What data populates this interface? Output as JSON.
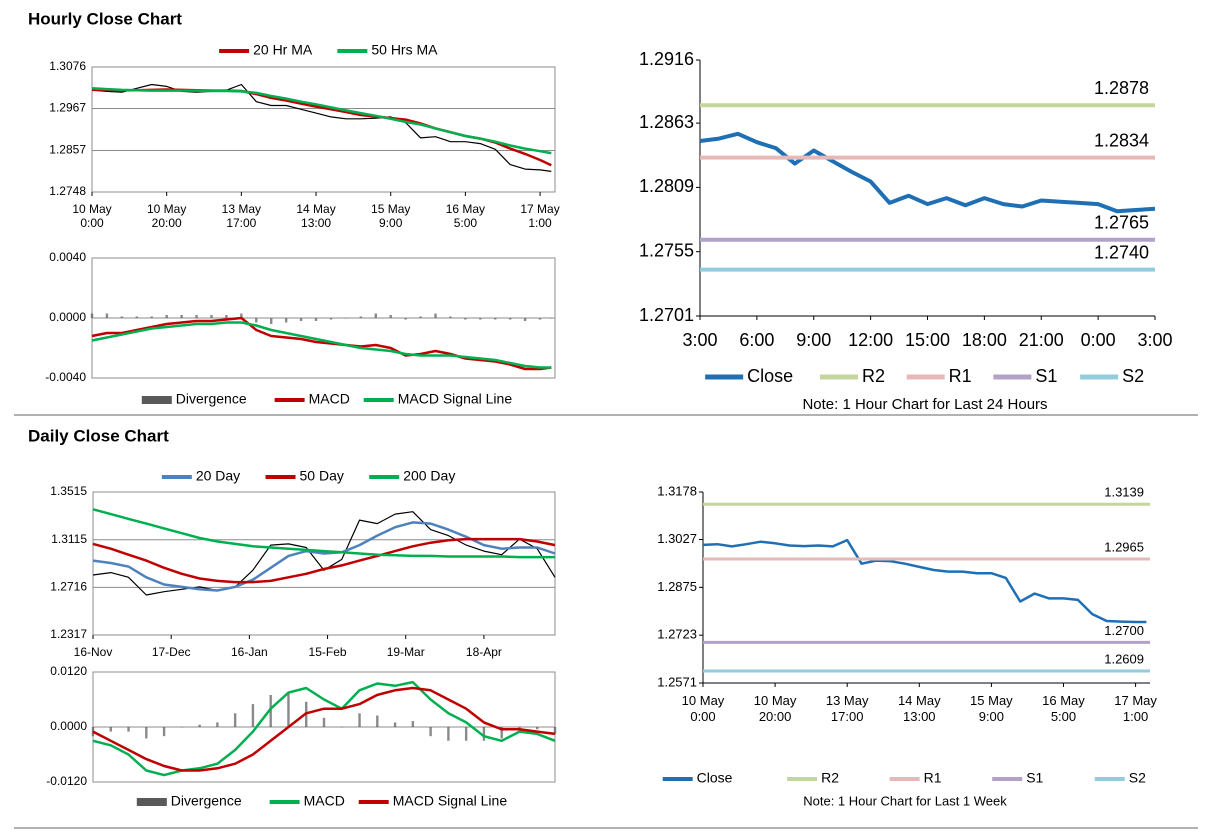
{
  "sections": [
    "Hourly Close Chart",
    "Daily Close Chart"
  ],
  "chart_data": [
    {
      "type": "line",
      "ylim": [
        1.2748,
        1.3076
      ],
      "yticks": [
        1.2748,
        1.2857,
        1.2967,
        1.3076
      ],
      "grid": true,
      "xlim": [
        0,
        124
      ],
      "xticks": [
        {
          "value": 0,
          "label": "10 May\n0:00"
        },
        {
          "value": 20,
          "label": "10 May\n20:00"
        },
        {
          "value": 40,
          "label": "13 May\n17:00"
        },
        {
          "value": 60,
          "label": "14 May\n13:00"
        },
        {
          "value": 80,
          "label": "15 May\n9:00"
        },
        {
          "value": 100,
          "label": "16 May\n5:00"
        },
        {
          "value": 120,
          "label": "17 May\n1:00"
        }
      ],
      "x": [
        0,
        4,
        8,
        12,
        16,
        20,
        24,
        28,
        32,
        36,
        40,
        44,
        48,
        52,
        56,
        60,
        64,
        68,
        72,
        76,
        80,
        84,
        88,
        92,
        96,
        100,
        104,
        108,
        112,
        116,
        120,
        123
      ],
      "series": [
        {
          "color": "#000000",
          "values": [
            1.3015,
            1.3012,
            1.301,
            1.302,
            1.303,
            1.3025,
            1.3012,
            1.301,
            1.3012,
            1.3015,
            1.303,
            1.2985,
            1.2975,
            1.2975,
            1.2965,
            1.2955,
            1.2945,
            1.294,
            1.294,
            1.2942,
            1.2945,
            1.293,
            1.289,
            1.2893,
            1.288,
            1.288,
            1.2875,
            1.286,
            1.282,
            1.2808,
            1.2806,
            1.2802
          ]
        },
        {
          "name": "20 Hr MA",
          "color": "#c00000",
          "values": [
            1.3016,
            1.3016,
            1.3015,
            1.3015,
            1.3016,
            1.3017,
            1.3016,
            1.3015,
            1.3014,
            1.3014,
            1.3013,
            1.3005,
            1.2995,
            1.2988,
            1.298,
            1.2972,
            1.2965,
            1.2958,
            1.295,
            1.2946,
            1.2942,
            1.2938,
            1.2928,
            1.2915,
            1.2905,
            1.2895,
            1.2888,
            1.2878,
            1.2862,
            1.2848,
            1.2832,
            1.2818
          ]
        },
        {
          "name": "50 Hrs MA",
          "color": "#00b050",
          "values": [
            1.302,
            1.3018,
            1.3016,
            1.3015,
            1.3014,
            1.3014,
            1.3014,
            1.3014,
            1.3013,
            1.3013,
            1.3012,
            1.3008,
            1.3,
            1.2993,
            1.2985,
            1.2978,
            1.297,
            1.2962,
            1.2955,
            1.2948,
            1.294,
            1.2932,
            1.2925,
            1.2915,
            1.2905,
            1.2895,
            1.2888,
            1.288,
            1.287,
            1.2862,
            1.2855,
            1.285
          ]
        }
      ]
    },
    {
      "type": "line",
      "ylim": [
        -0.004,
        0.004
      ],
      "yticks": [
        {
          "value": -0.004,
          "label": "-0.0040"
        },
        {
          "value": 0,
          "label": "0.0000"
        },
        {
          "value": 0.004,
          "label": "0.0040"
        }
      ],
      "grid": true,
      "xlim": [
        0,
        124
      ],
      "x": [
        0,
        4,
        8,
        12,
        16,
        20,
        24,
        28,
        32,
        36,
        40,
        44,
        48,
        52,
        56,
        60,
        64,
        68,
        72,
        76,
        80,
        84,
        88,
        92,
        96,
        100,
        104,
        108,
        112,
        116,
        120,
        123
      ],
      "series": [
        {
          "name": "Divergence",
          "type": "bar",
          "color": "#595959",
          "values": [
            0.0003,
            0.0003,
            0.0001,
            0.0001,
            0.0001,
            0.0002,
            0.0002,
            0.0002,
            0.0002,
            0.0002,
            0.0003,
            -0.0003,
            -0.0004,
            -0.0003,
            -0.0002,
            -0.0002,
            -0.0001,
            0,
            0.0001,
            0.0003,
            0.0002,
            -0.0001,
            0.0001,
            0.0003,
            0.0001,
            -0.0001,
            -0.0001,
            -0.0001,
            -0.0001,
            -0.0002,
            -0.0001,
            0
          ]
        },
        {
          "name": "MACD",
          "color": "#c00000",
          "values": [
            -0.0012,
            -0.001,
            -0.001,
            -0.0008,
            -0.0006,
            -0.0004,
            -0.0003,
            -0.0002,
            -0.0002,
            -0.0001,
            0,
            -0.0008,
            -0.0012,
            -0.0013,
            -0.0014,
            -0.0016,
            -0.0017,
            -0.0018,
            -0.0019,
            -0.0018,
            -0.002,
            -0.0025,
            -0.0024,
            -0.0022,
            -0.0024,
            -0.0027,
            -0.0028,
            -0.0029,
            -0.0031,
            -0.0034,
            -0.0034,
            -0.0033
          ]
        },
        {
          "name": "MACD Signal Line",
          "color": "#00b050",
          "values": [
            -0.0015,
            -0.0013,
            -0.0011,
            -0.0009,
            -0.0007,
            -0.0006,
            -0.0005,
            -0.0004,
            -0.0004,
            -0.0003,
            -0.0003,
            -0.0005,
            -0.0008,
            -0.001,
            -0.0012,
            -0.0014,
            -0.0016,
            -0.0018,
            -0.002,
            -0.0021,
            -0.0022,
            -0.0024,
            -0.0025,
            -0.0025,
            -0.0025,
            -0.0026,
            -0.0027,
            -0.0028,
            -0.003,
            -0.0032,
            -0.0033,
            -0.0033
          ]
        }
      ]
    },
    {
      "type": "line",
      "ylim": [
        1.2701,
        1.2916
      ],
      "yticks": [
        1.2701,
        1.2755,
        1.2809,
        1.2863,
        1.2916
      ],
      "grid": false,
      "xlim": [
        0,
        24
      ],
      "xticks": [
        {
          "value": 0,
          "label": "3:00"
        },
        {
          "value": 3,
          "label": "6:00"
        },
        {
          "value": 6,
          "label": "9:00"
        },
        {
          "value": 9,
          "label": "12:00"
        },
        {
          "value": 12,
          "label": "15:00"
        },
        {
          "value": 15,
          "label": "18:00"
        },
        {
          "value": 18,
          "label": "21:00"
        },
        {
          "value": 21,
          "label": "0:00"
        },
        {
          "value": 24,
          "label": "3:00"
        }
      ],
      "x": [
        0,
        1,
        2,
        3,
        4,
        5,
        6,
        7,
        8,
        9,
        10,
        11,
        12,
        13,
        14,
        15,
        16,
        17,
        18,
        19,
        20,
        21,
        22,
        23,
        24
      ],
      "series": [
        {
          "name": "Close",
          "color": "#1f6fb5",
          "values": [
            1.2848,
            1.285,
            1.2854,
            1.2847,
            1.2842,
            1.2829,
            1.284,
            1.2831,
            1.2822,
            1.2814,
            1.2796,
            1.2802,
            1.2795,
            1.28,
            1.2794,
            1.28,
            1.2795,
            1.2793,
            1.2798,
            1.2797,
            1.2796,
            1.2795,
            1.2789,
            1.279,
            1.2791
          ]
        }
      ],
      "levels": [
        {
          "name": "R2",
          "color": "#c3d69b",
          "value": 1.2878,
          "value_label": "1.2878"
        },
        {
          "name": "R1",
          "color": "#e6b9b8",
          "value": 1.2834,
          "value_label": "1.2834"
        },
        {
          "name": "S1",
          "color": "#b3a2c7",
          "value": 1.2765,
          "value_label": "1.2765"
        },
        {
          "name": "S2",
          "color": "#93cddd",
          "value": 1.274,
          "value_label": "1.2740"
        }
      ],
      "note": "Note: 1 Hour Chart for Last 24 Hours"
    },
    {
      "type": "line",
      "ylim": [
        1.2317,
        1.3515
      ],
      "yticks": [
        1.2317,
        1.2716,
        1.3115,
        1.3515
      ],
      "grid": true,
      "xlim": [
        0,
        130
      ],
      "xticks": [
        {
          "value": 0,
          "label": "16-Nov"
        },
        {
          "value": 22,
          "label": "17-Dec"
        },
        {
          "value": 44,
          "label": "16-Jan"
        },
        {
          "value": 66,
          "label": "15-Feb"
        },
        {
          "value": 88,
          "label": "19-Mar"
        },
        {
          "value": 110,
          "label": "18-Apr"
        }
      ],
      "x": [
        0,
        5,
        10,
        15,
        20,
        25,
        30,
        35,
        40,
        45,
        50,
        55,
        60,
        65,
        70,
        75,
        80,
        85,
        90,
        95,
        100,
        105,
        110,
        115,
        120,
        125,
        130
      ],
      "series": [
        {
          "color": "#000000",
          "values": [
            1.282,
            1.284,
            1.28,
            1.2652,
            1.268,
            1.27,
            1.272,
            1.269,
            1.272,
            1.286,
            1.307,
            1.308,
            1.305,
            1.286,
            1.295,
            1.328,
            1.325,
            1.333,
            1.335,
            1.32,
            1.315,
            1.307,
            1.302,
            1.299,
            1.312,
            1.304,
            1.28
          ]
        },
        {
          "name": "20 Day",
          "color": "#4f81bd",
          "values": [
            1.294,
            1.292,
            1.289,
            1.28,
            1.274,
            1.272,
            1.27,
            1.269,
            1.272,
            1.278,
            1.288,
            1.298,
            1.302,
            1.3,
            1.301,
            1.307,
            1.315,
            1.322,
            1.326,
            1.325,
            1.32,
            1.314,
            1.307,
            1.304,
            1.305,
            1.305,
            1.3
          ]
        },
        {
          "name": "50 Day",
          "color": "#c00000",
          "values": [
            1.308,
            1.304,
            1.299,
            1.294,
            1.288,
            1.283,
            1.279,
            1.277,
            1.276,
            1.276,
            1.277,
            1.28,
            1.283,
            1.287,
            1.29,
            1.294,
            1.298,
            1.302,
            1.306,
            1.309,
            1.311,
            1.312,
            1.312,
            1.312,
            1.312,
            1.31,
            1.307
          ]
        },
        {
          "name": "200 Day",
          "color": "#00b050",
          "values": [
            1.337,
            1.333,
            1.329,
            1.325,
            1.321,
            1.317,
            1.313,
            1.31,
            1.308,
            1.306,
            1.305,
            1.304,
            1.303,
            1.302,
            1.301,
            1.3,
            1.299,
            1.2985,
            1.298,
            1.298,
            1.2975,
            1.2975,
            1.2975,
            1.2975,
            1.297,
            1.297,
            1.297
          ]
        }
      ]
    },
    {
      "type": "line",
      "ylim": [
        -0.012,
        0.012
      ],
      "yticks": [
        {
          "value": -0.012,
          "label": "-0.0120"
        },
        {
          "value": 0,
          "label": "0.0000"
        },
        {
          "value": 0.012,
          "label": "0.0120"
        }
      ],
      "grid": true,
      "xlim": [
        0,
        130
      ],
      "x": [
        0,
        5,
        10,
        15,
        20,
        25,
        30,
        35,
        40,
        45,
        50,
        55,
        60,
        65,
        70,
        75,
        80,
        85,
        90,
        95,
        100,
        105,
        110,
        115,
        120,
        125,
        130
      ],
      "series": [
        {
          "name": "Divergence",
          "type": "bar",
          "color": "#595959",
          "values": [
            -0.002,
            -0.001,
            -0.001,
            -0.0025,
            -0.002,
            0,
            0.0005,
            0.001,
            0.003,
            0.005,
            0.007,
            0.0075,
            0.0055,
            0.002,
            0,
            0.003,
            0.0025,
            0.001,
            0.0013,
            -0.002,
            -0.003,
            -0.003,
            -0.003,
            -0.0025,
            -0.0005,
            -0.0005,
            -0.0015
          ]
        },
        {
          "name": "MACD",
          "color": "#00b050",
          "values": [
            -0.003,
            -0.004,
            -0.006,
            -0.0095,
            -0.0105,
            -0.0095,
            -0.009,
            -0.008,
            -0.005,
            -0.001,
            0.004,
            0.0075,
            0.0085,
            0.006,
            0.004,
            0.008,
            0.0095,
            0.009,
            0.0098,
            0.006,
            0.003,
            0.001,
            -0.002,
            -0.003,
            -0.001,
            -0.0015,
            -0.003
          ]
        },
        {
          "name": "MACD Signal Line",
          "color": "#c00000",
          "values": [
            -0.001,
            -0.003,
            -0.005,
            -0.007,
            -0.0085,
            -0.0095,
            -0.0095,
            -0.009,
            -0.008,
            -0.006,
            -0.003,
            0,
            0.003,
            0.004,
            0.004,
            0.005,
            0.007,
            0.008,
            0.0085,
            0.008,
            0.006,
            0.004,
            0.001,
            -0.0005,
            -0.0005,
            -0.001,
            -0.0015
          ]
        }
      ]
    },
    {
      "type": "line",
      "ylim": [
        1.2571,
        1.3178
      ],
      "yticks": [
        1.2571,
        1.2723,
        1.2875,
        1.3027,
        1.3178
      ],
      "grid": false,
      "xlim": [
        0,
        124
      ],
      "xticks": [
        {
          "value": 0,
          "label": "10 May\n0:00"
        },
        {
          "value": 20,
          "label": "10 May\n20:00"
        },
        {
          "value": 40,
          "label": "13 May\n17:00"
        },
        {
          "value": 60,
          "label": "14 May\n13:00"
        },
        {
          "value": 80,
          "label": "15 May\n9:00"
        },
        {
          "value": 100,
          "label": "16 May\n5:00"
        },
        {
          "value": 120,
          "label": "17 May\n1:00"
        }
      ],
      "x": [
        0,
        4,
        8,
        12,
        16,
        20,
        24,
        28,
        32,
        36,
        40,
        44,
        48,
        52,
        56,
        60,
        64,
        68,
        72,
        76,
        80,
        84,
        88,
        92,
        96,
        100,
        104,
        108,
        112,
        116,
        120,
        123
      ],
      "series": [
        {
          "name": "Close",
          "color": "#1f6fb5",
          "values": [
            1.301,
            1.3012,
            1.3005,
            1.3012,
            1.302,
            1.3015,
            1.3008,
            1.3006,
            1.3008,
            1.3005,
            1.3025,
            1.295,
            1.296,
            1.2958,
            1.295,
            1.294,
            1.293,
            1.2925,
            1.2925,
            1.292,
            1.292,
            1.2905,
            1.283,
            1.2855,
            1.284,
            1.284,
            1.2835,
            1.279,
            1.2768,
            1.2766,
            1.2765,
            1.2765
          ]
        }
      ],
      "levels": [
        {
          "name": "R2",
          "color": "#c3d69b",
          "value": 1.3139,
          "value_label": "1.3139"
        },
        {
          "name": "R1",
          "color": "#e6b9b8",
          "value": 1.2965,
          "value_label": "1.2965"
        },
        {
          "name": "S1",
          "color": "#b3a2c7",
          "value": 1.27,
          "value_label": "1.2700"
        },
        {
          "name": "S2",
          "color": "#93cddd",
          "value": 1.2609,
          "value_label": "1.2609"
        }
      ],
      "note": "Note: 1 Hour Chart for Last 1 Week"
    }
  ]
}
